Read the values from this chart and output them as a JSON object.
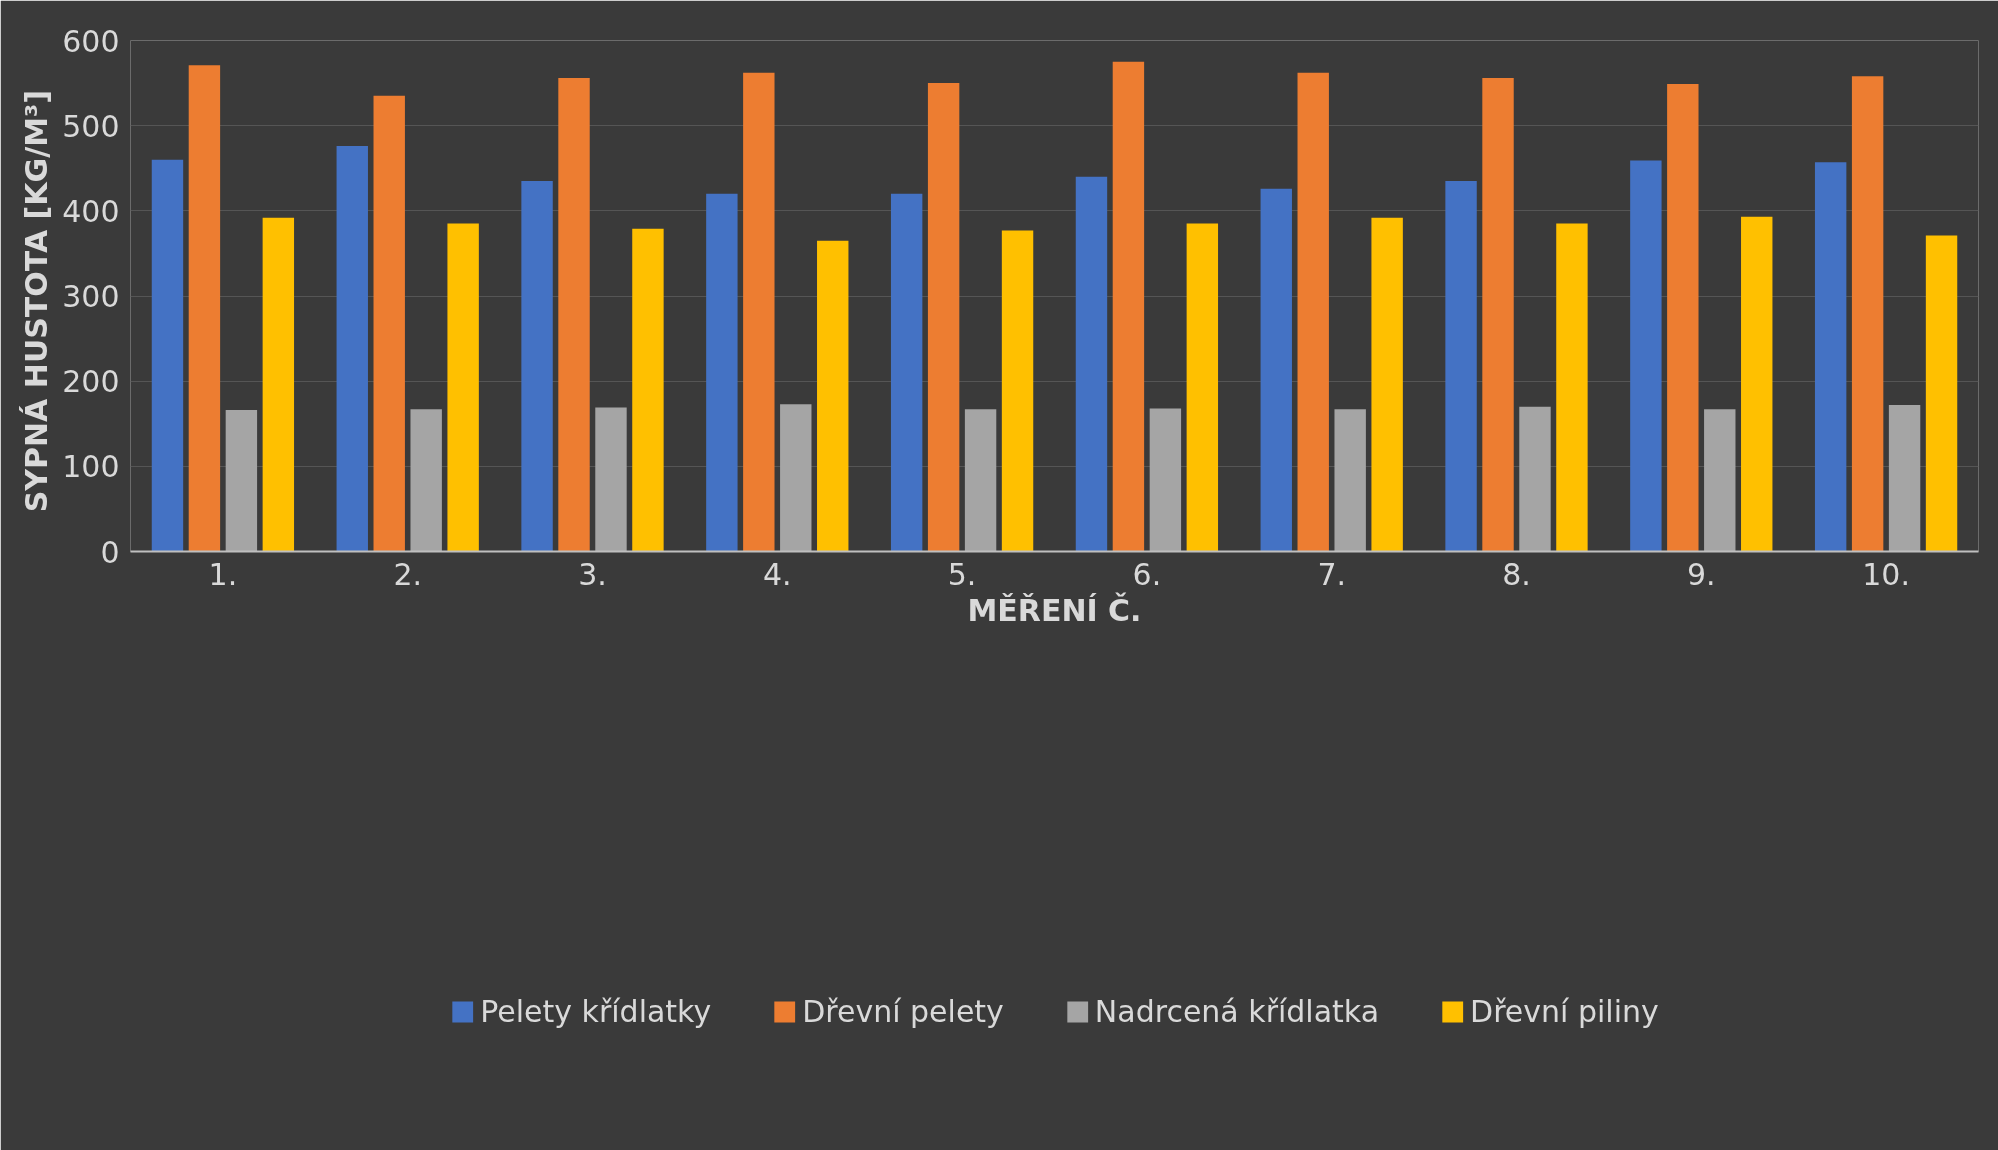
{
  "chart_data": {
    "type": "bar",
    "xlabel": "MĚŘENÍ Č.",
    "ylabel": "SYPNÁ HUSTOTA  [KG/M³]",
    "categories": [
      "1.",
      "2.",
      "3.",
      "4.",
      "5.",
      "6.",
      "7.",
      "8.",
      "9.",
      "10."
    ],
    "series": [
      {
        "name": "Pelety křídlatky",
        "color": "#4472c4",
        "values": [
          460,
          476,
          435,
          420,
          420,
          440,
          426,
          435,
          459,
          457
        ]
      },
      {
        "name": "Dřevní pelety",
        "color": "#ed7d31",
        "values": [
          571,
          535,
          556,
          562,
          550,
          575,
          562,
          556,
          549,
          558
        ]
      },
      {
        "name": "Nadrcená křídlatka",
        "color": "#a5a5a5",
        "values": [
          166,
          167,
          169,
          173,
          167,
          168,
          167,
          170,
          167,
          172
        ]
      },
      {
        "name": "Dřevní piliny",
        "color": "#ffc000",
        "values": [
          392,
          385,
          379,
          365,
          377,
          385,
          392,
          385,
          393,
          371
        ]
      }
    ],
    "ylim": [
      0,
      600
    ],
    "yticks": [
      0,
      100,
      200,
      300,
      400,
      500,
      600
    ],
    "grid": "y",
    "legend": "bottom"
  }
}
